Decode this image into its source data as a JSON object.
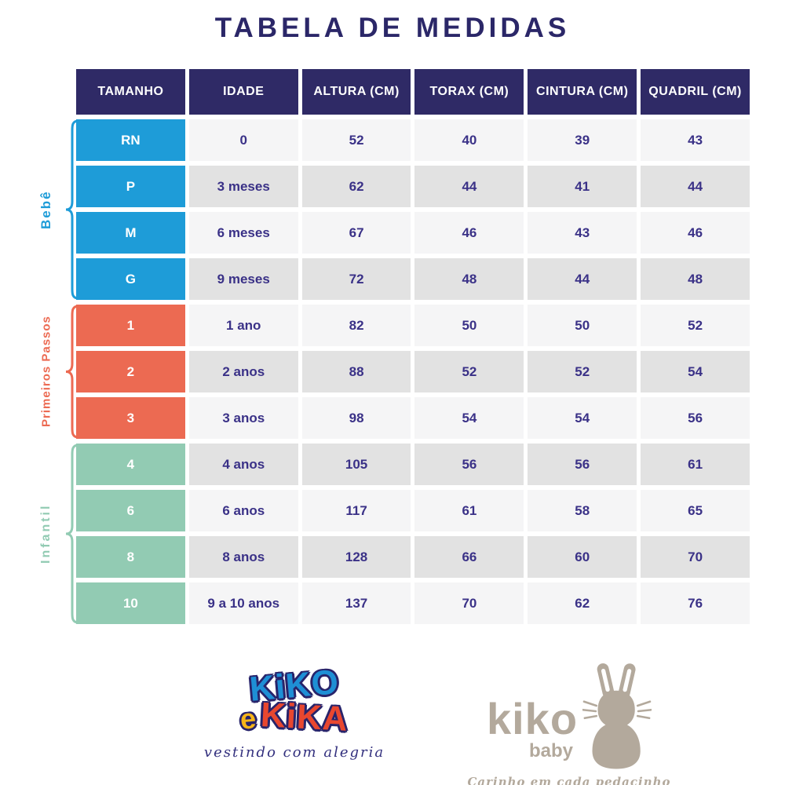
{
  "title": "TABELA DE MEDIDAS",
  "chart_data": {
    "type": "table",
    "columns": [
      "TAMANHO",
      "IDADE",
      "ALTURA (CM)",
      "TORAX (CM)",
      "CINTURA (CM)",
      "QUADRIL (CM)"
    ],
    "groups": [
      {
        "label": "Bebê",
        "color": "#1E9CD8",
        "rows": [
          {
            "tamanho": "RN",
            "idade": "0",
            "altura": "52",
            "torax": "40",
            "cintura": "39",
            "quadril": "43"
          },
          {
            "tamanho": "P",
            "idade": "3 meses",
            "altura": "62",
            "torax": "44",
            "cintura": "41",
            "quadril": "44"
          },
          {
            "tamanho": "M",
            "idade": "6 meses",
            "altura": "67",
            "torax": "46",
            "cintura": "43",
            "quadril": "46"
          },
          {
            "tamanho": "G",
            "idade": "9 meses",
            "altura": "72",
            "torax": "48",
            "cintura": "44",
            "quadril": "48"
          }
        ]
      },
      {
        "label": "Primeiros Passos",
        "color": "#EC6A52",
        "rows": [
          {
            "tamanho": "1",
            "idade": "1 ano",
            "altura": "82",
            "torax": "50",
            "cintura": "50",
            "quadril": "52"
          },
          {
            "tamanho": "2",
            "idade": "2 anos",
            "altura": "88",
            "torax": "52",
            "cintura": "52",
            "quadril": "54"
          },
          {
            "tamanho": "3",
            "idade": "3 anos",
            "altura": "98",
            "torax": "54",
            "cintura": "54",
            "quadril": "56"
          }
        ]
      },
      {
        "label": "Infantil",
        "color": "#92CBB3",
        "rows": [
          {
            "tamanho": "4",
            "idade": "4 anos",
            "altura": "105",
            "torax": "56",
            "cintura": "56",
            "quadril": "61"
          },
          {
            "tamanho": "6",
            "idade": "6 anos",
            "altura": "117",
            "torax": "61",
            "cintura": "58",
            "quadril": "65"
          },
          {
            "tamanho": "8",
            "idade": "8 anos",
            "altura": "128",
            "torax": "66",
            "cintura": "60",
            "quadril": "70"
          },
          {
            "tamanho": "10",
            "idade": "9 a 10 anos",
            "altura": "137",
            "torax": "70",
            "cintura": "62",
            "quadril": "76"
          }
        ]
      }
    ]
  },
  "colors": {
    "header_bg": "#2F2A66",
    "cell_text": "#3A3187",
    "row_light": "#F5F5F6",
    "row_dark": "#E2E2E2",
    "bebe_blue": "#1E9CD8",
    "passos_coral": "#EC6A52",
    "infantil_mint": "#92CBB3",
    "baby_taupe": "#B3A99C"
  },
  "footer": {
    "brand_primary": {
      "word_kiko": "KiKO",
      "word_e": "e",
      "word_kika": "KiKA",
      "tagline": "vestindo com alegria"
    },
    "brand_baby": {
      "name": "kiko",
      "sub": "baby",
      "tagline": "Carinho em cada pedacinho"
    }
  }
}
